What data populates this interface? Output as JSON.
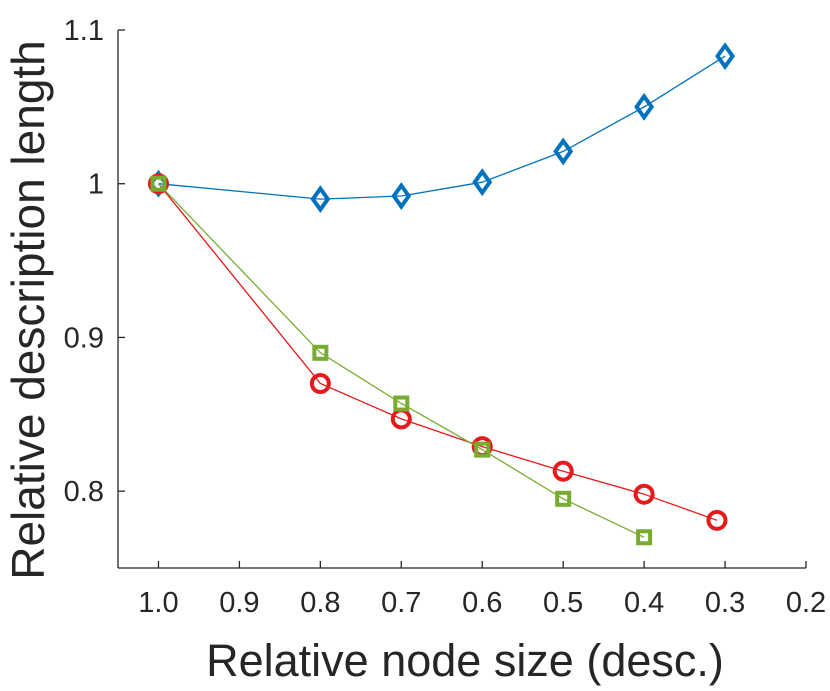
{
  "chart_data": {
    "type": "line",
    "title": "",
    "xlabel": "Relative node size (desc.)",
    "ylabel": "Relative description length",
    "xlim": [
      1.05,
      0.2
    ],
    "ylim": [
      0.75,
      1.1
    ],
    "x_reversed": true,
    "x_ticks": [
      1.0,
      0.9,
      0.8,
      0.7,
      0.6,
      0.5,
      0.4,
      0.3,
      0.2
    ],
    "x_tick_labels": [
      "1.0",
      "0.9",
      "0.8",
      "0.7",
      "0.6",
      "0.5",
      "0.4",
      "0.3",
      "0.2"
    ],
    "y_ticks": [
      0.8,
      0.9,
      1.0,
      1.1
    ],
    "y_tick_labels": [
      "0.8",
      "0.9",
      "1",
      "1.1"
    ],
    "grid": false,
    "legend": "none",
    "series": [
      {
        "color": "#0072BD",
        "marker": "diamond",
        "x": [
          1.0,
          0.8,
          0.7,
          0.6,
          0.5,
          0.4,
          0.3
        ],
        "values": [
          1.0,
          0.99,
          0.992,
          1.001,
          1.021,
          1.05,
          1.083
        ]
      },
      {
        "color": "#E41A1C",
        "marker": "circle",
        "x": [
          1.0,
          0.8,
          0.7,
          0.6,
          0.5,
          0.4,
          0.31
        ],
        "values": [
          1.0,
          0.87,
          0.847,
          0.829,
          0.813,
          0.798,
          0.781
        ]
      },
      {
        "color": "#77AC30",
        "marker": "square",
        "x": [
          1.0,
          0.8,
          0.7,
          0.6,
          0.5,
          0.4
        ],
        "values": [
          1.0,
          0.89,
          0.857,
          0.827,
          0.795,
          0.77
        ]
      }
    ]
  }
}
